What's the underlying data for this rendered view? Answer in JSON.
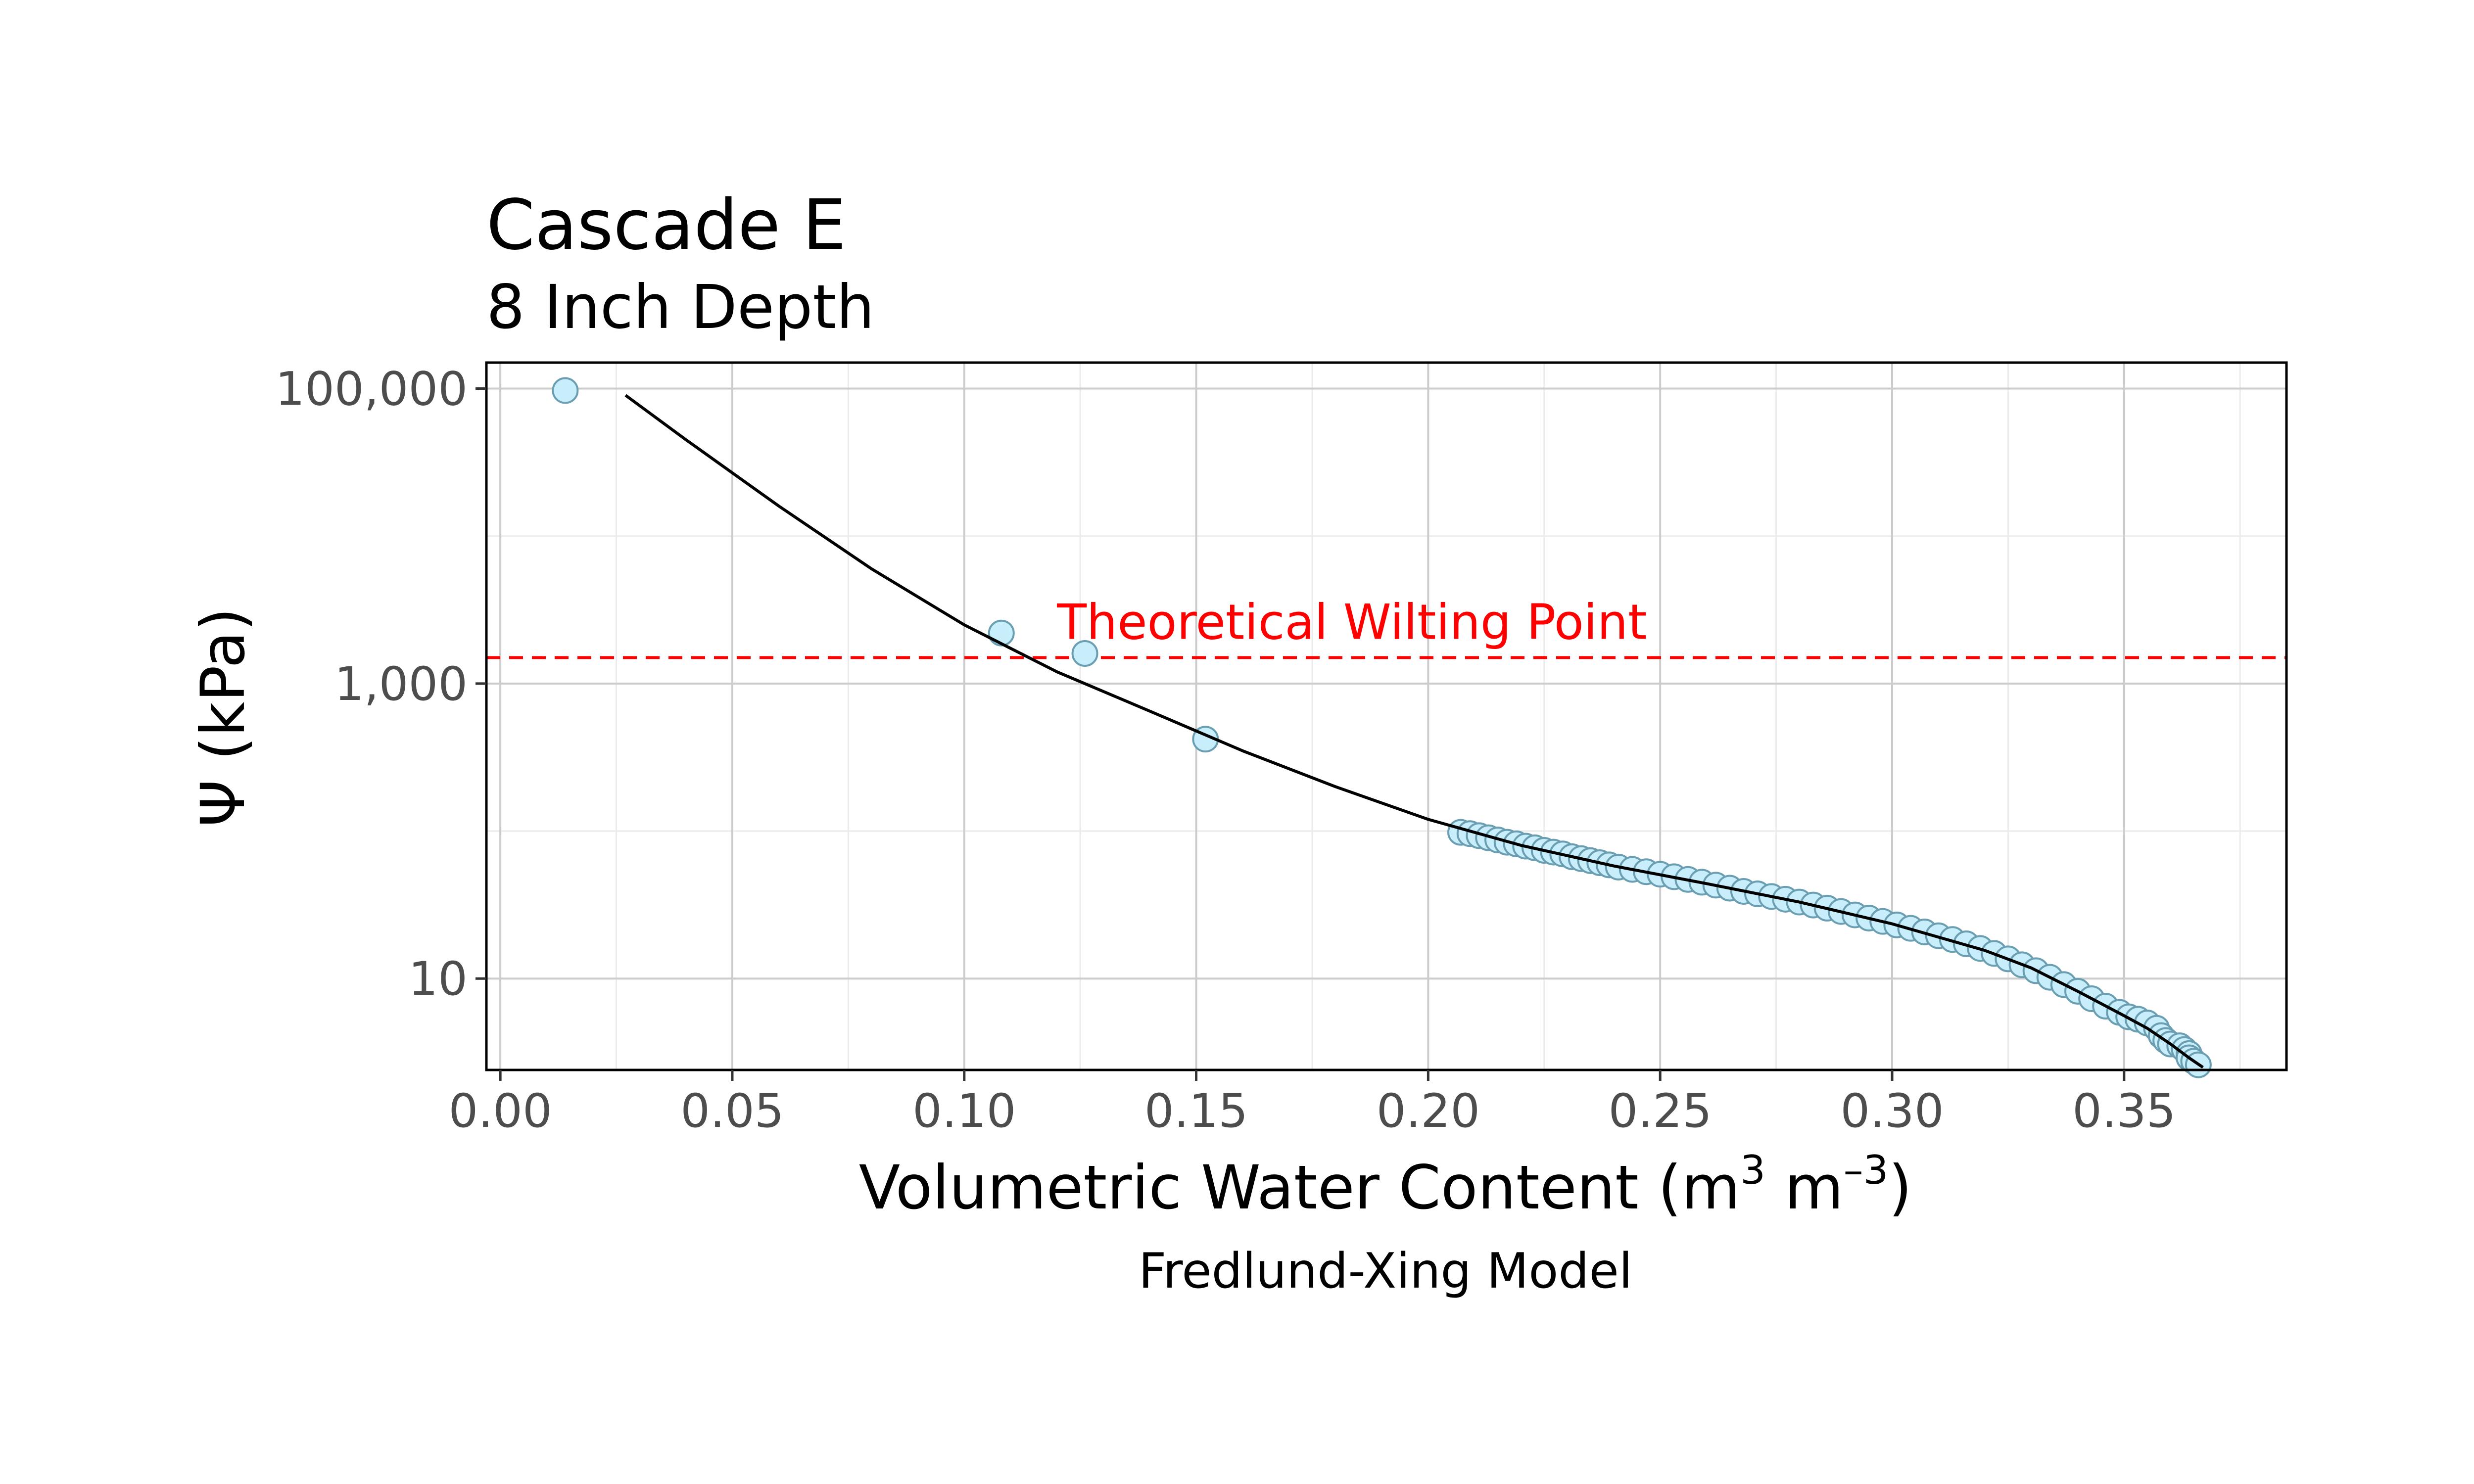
{
  "chart_data": {
    "type": "scatter",
    "title": "Cascade E",
    "subtitle": "8 Inch Depth",
    "xlabel": "Volumetric Water Content (m",
    "xlabel_sup1": "3",
    "xlabel_mid": " m",
    "xlabel_sup2": "–3",
    "xlabel_end": ")",
    "ylabel": "Ψ (kPa)",
    "caption": "Fredlund-Xing Model",
    "y_scale": "log",
    "xlim": [
      -0.003,
      0.385
    ],
    "ylim": [
      2.4,
      150000
    ],
    "x_ticks": [
      {
        "value": 0.0,
        "label": "0.00"
      },
      {
        "value": 0.05,
        "label": "0.05"
      },
      {
        "value": 0.1,
        "label": "0.10"
      },
      {
        "value": 0.15,
        "label": "0.15"
      },
      {
        "value": 0.2,
        "label": "0.20"
      },
      {
        "value": 0.25,
        "label": "0.25"
      },
      {
        "value": 0.3,
        "label": "0.30"
      },
      {
        "value": 0.35,
        "label": "0.35"
      }
    ],
    "y_ticks": [
      {
        "value": 10,
        "label": "10"
      },
      {
        "value": 1000,
        "label": "1,000"
      },
      {
        "value": 100000,
        "label": "100,000"
      }
    ],
    "grid": true,
    "annotation": {
      "text": "Theoretical Wilting Point",
      "line_y": 1500,
      "text_x": 0.12,
      "color": "#ff0000"
    },
    "point_style": {
      "fill": "#c7eefa",
      "stroke": "#6a9eb0"
    },
    "curve_color": "#000000",
    "points": [
      {
        "x": 0.014,
        "y": 97000
      },
      {
        "x": 0.108,
        "y": 2200
      },
      {
        "x": 0.126,
        "y": 1600
      },
      {
        "x": 0.152,
        "y": 420
      },
      {
        "x": 0.207,
        "y": 98
      },
      {
        "x": 0.209,
        "y": 96
      },
      {
        "x": 0.211,
        "y": 93
      },
      {
        "x": 0.213,
        "y": 90
      },
      {
        "x": 0.215,
        "y": 87
      },
      {
        "x": 0.217,
        "y": 84
      },
      {
        "x": 0.219,
        "y": 82
      },
      {
        "x": 0.221,
        "y": 79
      },
      {
        "x": 0.223,
        "y": 77
      },
      {
        "x": 0.225,
        "y": 74
      },
      {
        "x": 0.227,
        "y": 72
      },
      {
        "x": 0.229,
        "y": 70
      },
      {
        "x": 0.231,
        "y": 67
      },
      {
        "x": 0.233,
        "y": 65
      },
      {
        "x": 0.235,
        "y": 63
      },
      {
        "x": 0.237,
        "y": 61
      },
      {
        "x": 0.239,
        "y": 59
      },
      {
        "x": 0.241,
        "y": 57
      },
      {
        "x": 0.244,
        "y": 55
      },
      {
        "x": 0.247,
        "y": 53
      },
      {
        "x": 0.25,
        "y": 51
      },
      {
        "x": 0.253,
        "y": 49
      },
      {
        "x": 0.256,
        "y": 47
      },
      {
        "x": 0.259,
        "y": 45
      },
      {
        "x": 0.262,
        "y": 43
      },
      {
        "x": 0.265,
        "y": 41
      },
      {
        "x": 0.268,
        "y": 39
      },
      {
        "x": 0.271,
        "y": 37.5
      },
      {
        "x": 0.274,
        "y": 36
      },
      {
        "x": 0.277,
        "y": 34.5
      },
      {
        "x": 0.28,
        "y": 33
      },
      {
        "x": 0.283,
        "y": 31.5
      },
      {
        "x": 0.286,
        "y": 30
      },
      {
        "x": 0.289,
        "y": 28.5
      },
      {
        "x": 0.292,
        "y": 27
      },
      {
        "x": 0.295,
        "y": 25.7
      },
      {
        "x": 0.298,
        "y": 24.4
      },
      {
        "x": 0.301,
        "y": 23.1
      },
      {
        "x": 0.304,
        "y": 21.9
      },
      {
        "x": 0.307,
        "y": 20.7
      },
      {
        "x": 0.31,
        "y": 19.5
      },
      {
        "x": 0.313,
        "y": 18.4
      },
      {
        "x": 0.316,
        "y": 17.2
      },
      {
        "x": 0.319,
        "y": 16
      },
      {
        "x": 0.322,
        "y": 14.8
      },
      {
        "x": 0.325,
        "y": 13.6
      },
      {
        "x": 0.328,
        "y": 12.4
      },
      {
        "x": 0.331,
        "y": 11.3
      },
      {
        "x": 0.334,
        "y": 10.2
      },
      {
        "x": 0.337,
        "y": 9.1
      },
      {
        "x": 0.34,
        "y": 8.2
      },
      {
        "x": 0.343,
        "y": 7.3
      },
      {
        "x": 0.346,
        "y": 6.5
      },
      {
        "x": 0.349,
        "y": 5.9
      },
      {
        "x": 0.351,
        "y": 5.5
      },
      {
        "x": 0.353,
        "y": 5.3
      },
      {
        "x": 0.355,
        "y": 5.0
      },
      {
        "x": 0.357,
        "y": 4.6
      },
      {
        "x": 0.358,
        "y": 4.1
      },
      {
        "x": 0.359,
        "y": 3.8
      },
      {
        "x": 0.36,
        "y": 3.6
      },
      {
        "x": 0.362,
        "y": 3.5
      },
      {
        "x": 0.363,
        "y": 3.3
      },
      {
        "x": 0.364,
        "y": 3.1
      },
      {
        "x": 0.364,
        "y": 2.9
      },
      {
        "x": 0.365,
        "y": 2.75
      },
      {
        "x": 0.366,
        "y": 2.6
      }
    ],
    "curve": [
      {
        "x": 0.027,
        "y": 90000
      },
      {
        "x": 0.04,
        "y": 45000
      },
      {
        "x": 0.06,
        "y": 16000
      },
      {
        "x": 0.08,
        "y": 6000
      },
      {
        "x": 0.1,
        "y": 2500
      },
      {
        "x": 0.12,
        "y": 1200
      },
      {
        "x": 0.14,
        "y": 650
      },
      {
        "x": 0.16,
        "y": 350
      },
      {
        "x": 0.18,
        "y": 200
      },
      {
        "x": 0.2,
        "y": 120
      },
      {
        "x": 0.22,
        "y": 80
      },
      {
        "x": 0.24,
        "y": 58
      },
      {
        "x": 0.26,
        "y": 44
      },
      {
        "x": 0.28,
        "y": 33
      },
      {
        "x": 0.3,
        "y": 23.5
      },
      {
        "x": 0.32,
        "y": 15.5
      },
      {
        "x": 0.33,
        "y": 11.8
      },
      {
        "x": 0.34,
        "y": 8.2
      },
      {
        "x": 0.35,
        "y": 5.6
      },
      {
        "x": 0.355,
        "y": 4.6
      },
      {
        "x": 0.36,
        "y": 3.6
      },
      {
        "x": 0.364,
        "y": 2.9
      },
      {
        "x": 0.367,
        "y": 2.5
      }
    ]
  }
}
